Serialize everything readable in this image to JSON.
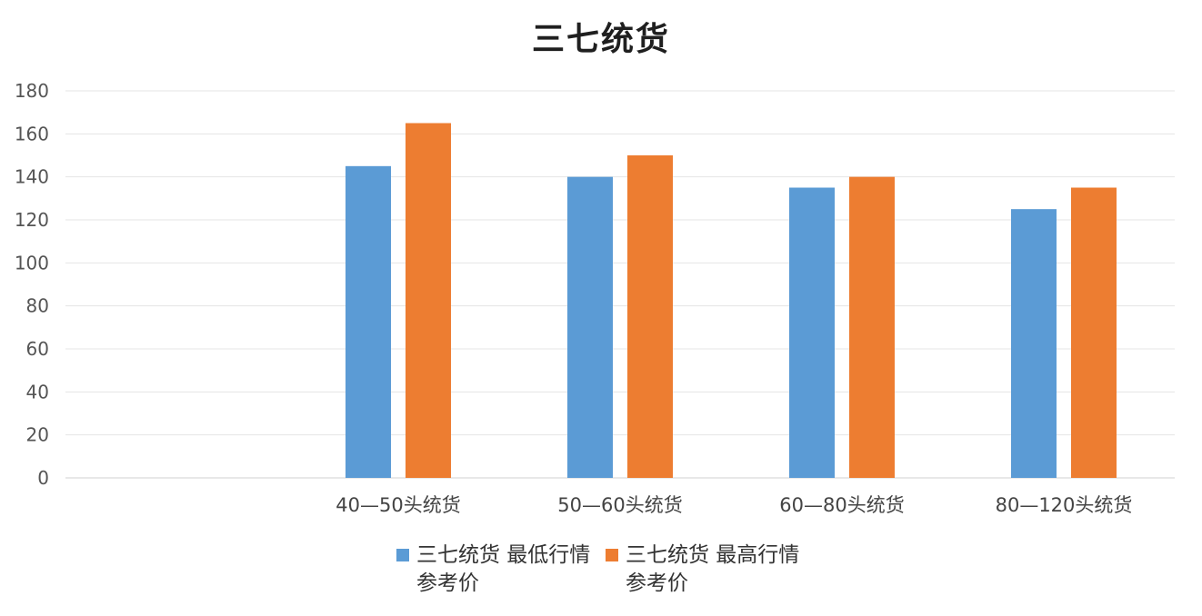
{
  "chart_data": {
    "type": "bar",
    "title": "三七统货",
    "categories": [
      "",
      "40—50头统货",
      "50—60头统货",
      "60—80头统货",
      "80—120头统货"
    ],
    "series": [
      {
        "name": "三七统货 最低行情\n参考价",
        "color": "#5b9bd5",
        "values": [
          null,
          145,
          140,
          135,
          125
        ]
      },
      {
        "name": "三七统货 最高行情\n参考价",
        "color": "#ed7d31",
        "values": [
          null,
          165,
          150,
          140,
          135
        ]
      }
    ],
    "ylim": [
      0,
      180
    ],
    "yticks": [
      0,
      20,
      40,
      60,
      80,
      100,
      120,
      140,
      160,
      180
    ],
    "grid": true,
    "legend_position": "bottom"
  }
}
